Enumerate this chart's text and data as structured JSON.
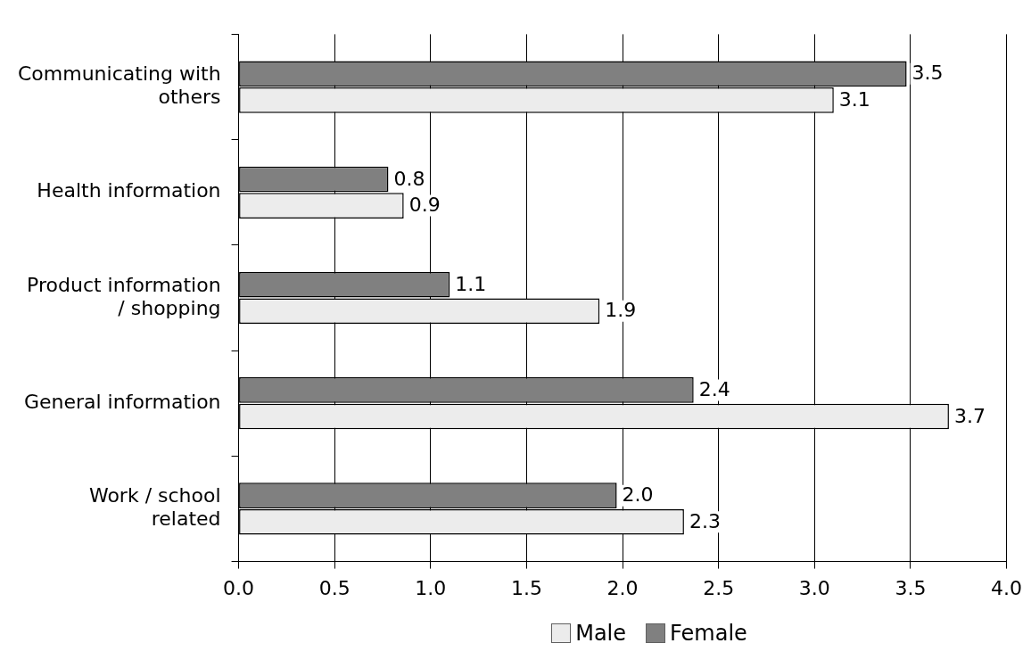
{
  "chart_data": {
    "type": "bar",
    "orientation": "horizontal",
    "categories": [
      "Communicating with others",
      "Health information",
      "Product information / shopping",
      "General information",
      "Work / school related"
    ],
    "series": [
      {
        "name": "Male",
        "color": "#ececec",
        "values": [
          3.1,
          0.86,
          1.88,
          3.7,
          2.32
        ],
        "value_labels": [
          "3.1",
          "0.9",
          "1.9",
          "3.7",
          "2.3"
        ]
      },
      {
        "name": "Female",
        "color": "#808080",
        "values": [
          3.48,
          0.78,
          1.1,
          2.37,
          1.97
        ],
        "value_labels": [
          "3.5",
          "0.8",
          "1.1",
          "2.4",
          "2.0"
        ]
      }
    ],
    "xlim": [
      0,
      4
    ],
    "xticks": [
      {
        "value": 0,
        "label": "0.0"
      },
      {
        "value": 0.5,
        "label": "0.5"
      },
      {
        "value": 1,
        "label": "1.0"
      },
      {
        "value": 1.5,
        "label": "1.5"
      },
      {
        "value": 2,
        "label": "2.0"
      },
      {
        "value": 2.5,
        "label": "2.5"
      },
      {
        "value": 3,
        "label": "3.0"
      },
      {
        "value": 3.5,
        "label": "3.5"
      },
      {
        "value": 4,
        "label": "4.0"
      }
    ],
    "grid": "x",
    "legend": "bottom"
  }
}
